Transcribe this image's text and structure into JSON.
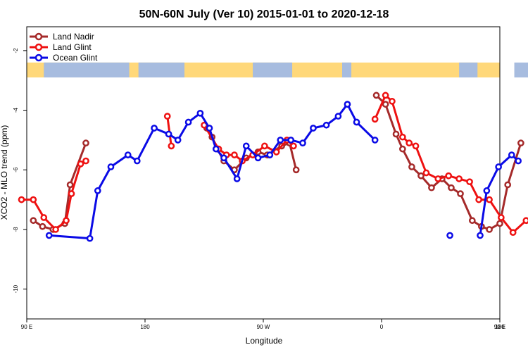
{
  "chart_data": {
    "type": "line",
    "title": "50N-60N July (Ver 10)   2015-01-01 to 2020-12-18",
    "xlabel": "Longitude",
    "ylabel": "XCO2 - MLO trend (ppm)",
    "xlim": [
      90,
      450
    ],
    "ylim": [
      -11,
      -1.2
    ],
    "x_ticks": [
      {
        "value": 90,
        "label": "90 E"
      },
      {
        "value": 180,
        "label": "180"
      },
      {
        "value": 270,
        "label": "90 W"
      },
      {
        "value": 360,
        "label": "0"
      },
      {
        "value": 450,
        "label": "90 E"
      },
      {
        "value": 540,
        "label": "180"
      }
    ],
    "y_ticks": [
      {
        "value": -2,
        "label": "-2"
      },
      {
        "value": -4,
        "label": "-4"
      },
      {
        "value": -6,
        "label": "-6"
      },
      {
        "value": -8,
        "label": "-8"
      },
      {
        "value": -10,
        "label": "-10"
      }
    ],
    "map_strip": {
      "ocean_color": "#a7bcdf",
      "land_color": "#ffd87a",
      "y_top": -2.4,
      "y_bottom": -2.9
    },
    "legend_position": "top-left",
    "series": [
      {
        "name": "Land Nadir",
        "color": "#a52a2a",
        "segments": [
          [
            [
              95,
              -7.7
            ],
            [
              102,
              -7.9
            ],
            [
              110,
              -8.0
            ],
            [
              119,
              -7.8
            ],
            [
              123,
              -6.5
            ],
            [
              135,
              -5.1
            ]
          ],
          [
            [
              227,
              -4.6
            ],
            [
              231,
              -4.9
            ],
            [
              235,
              -5.3
            ],
            [
              240,
              -5.7
            ],
            [
              248,
              -6.0
            ],
            [
              257,
              -5.6
            ],
            [
              266,
              -5.4
            ],
            [
              273,
              -5.5
            ],
            [
              284,
              -5.2
            ],
            [
              290,
              -5.1
            ],
            [
              295,
              -6.0
            ]
          ],
          [
            [
              356,
              -3.5
            ],
            [
              363,
              -3.8
            ],
            [
              371,
              -4.8
            ],
            [
              376,
              -5.3
            ],
            [
              383,
              -5.9
            ],
            [
              390,
              -6.2
            ],
            [
              398,
              -6.6
            ],
            [
              406,
              -6.3
            ],
            [
              413,
              -6.6
            ],
            [
              420,
              -6.8
            ],
            [
              429,
              -7.7
            ],
            [
              436,
              -7.9
            ],
            [
              442,
              -8.0
            ],
            [
              450,
              -7.8
            ],
            [
              456,
              -6.5
            ],
            [
              466,
              -5.1
            ]
          ]
        ]
      },
      {
        "name": "Land Glint",
        "color": "#ee1111",
        "segments": [
          [
            [
              86,
              -7.0
            ],
            [
              95,
              -7.0
            ],
            [
              103,
              -7.6
            ],
            [
              112,
              -8.0
            ],
            [
              120,
              -7.7
            ],
            [
              124,
              -6.8
            ],
            [
              131,
              -5.8
            ],
            [
              135,
              -5.7
            ]
          ],
          [
            [
              197,
              -4.2
            ],
            [
              200,
              -5.2
            ]
          ],
          [
            [
              225,
              -4.5
            ],
            [
              236,
              -5.3
            ],
            [
              242,
              -5.5
            ],
            [
              248,
              -5.5
            ],
            [
              254,
              -5.7
            ],
            [
              262,
              -5.5
            ],
            [
              271,
              -5.2
            ],
            [
              280,
              -5.4
            ],
            [
              288,
              -5.0
            ],
            [
              293,
              -5.2
            ]
          ],
          [
            [
              355,
              -4.3
            ],
            [
              363,
              -3.5
            ],
            [
              368,
              -3.7
            ],
            [
              376,
              -4.9
            ],
            [
              381,
              -5.1
            ],
            [
              386,
              -5.2
            ],
            [
              394,
              -6.1
            ],
            [
              403,
              -6.3
            ],
            [
              411,
              -6.2
            ],
            [
              419,
              -6.3
            ],
            [
              427,
              -6.4
            ],
            [
              434,
              -7.0
            ],
            [
              442,
              -7.0
            ],
            [
              451,
              -7.6
            ],
            [
              460,
              -8.1
            ],
            [
              470,
              -7.7
            ]
          ]
        ]
      },
      {
        "name": "Ocean Glint",
        "color": "#0a0ae6",
        "segments": [
          [
            [
              107,
              -8.2
            ],
            [
              138,
              -8.3
            ],
            [
              144,
              -6.7
            ],
            [
              154,
              -5.9
            ],
            [
              167,
              -5.5
            ],
            [
              174,
              -5.7
            ],
            [
              187,
              -4.6
            ],
            [
              198,
              -4.8
            ],
            [
              205,
              -5.0
            ],
            [
              213,
              -4.4
            ],
            [
              222,
              -4.1
            ],
            [
              229,
              -4.6
            ],
            [
              234,
              -5.3
            ],
            [
              240,
              -5.6
            ],
            [
              250,
              -6.3
            ],
            [
              257,
              -5.2
            ],
            [
              266,
              -5.6
            ],
            [
              275,
              -5.5
            ],
            [
              283,
              -5.0
            ],
            [
              291,
              -5.0
            ],
            [
              300,
              -5.1
            ],
            [
              308,
              -4.6
            ],
            [
              318,
              -4.5
            ],
            [
              327,
              -4.2
            ],
            [
              334,
              -3.8
            ],
            [
              341,
              -4.4
            ],
            [
              355,
              -5.0
            ]
          ],
          [
            [
              412,
              -8.2
            ]
          ],
          [
            [
              435,
              -8.2
            ],
            [
              440,
              -6.7
            ],
            [
              449,
              -5.9
            ],
            [
              459,
              -5.5
            ],
            [
              464,
              -5.7
            ]
          ]
        ]
      }
    ]
  }
}
